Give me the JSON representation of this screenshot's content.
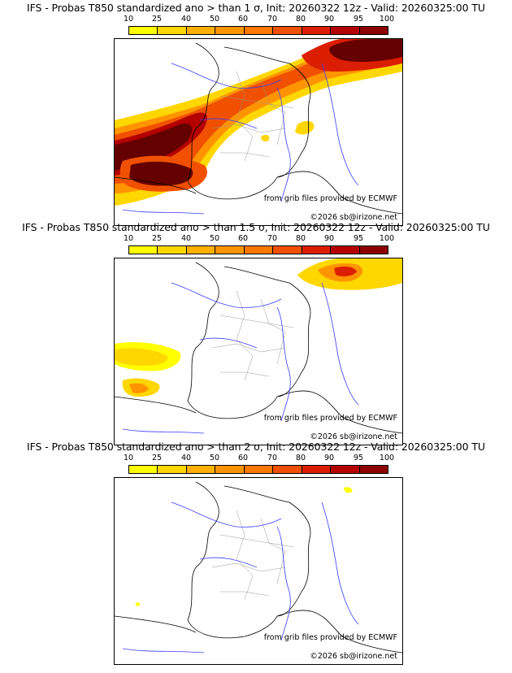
{
  "legend": {
    "labels": [
      "10",
      "25",
      "40",
      "50",
      "60",
      "70",
      "80",
      "90",
      "95",
      "100"
    ],
    "colors": [
      "#ffff00",
      "#ffd700",
      "#ffb000",
      "#ff9400",
      "#ff7800",
      "#f05000",
      "#dc1e00",
      "#b40000",
      "#8c0000",
      "#640000"
    ]
  },
  "panels": [
    {
      "title": "IFS - Probas T850  standardized ano > than 1 σ, Init: 20260322 12z - Valid: 20260325:00 TU",
      "source": "from grib files provided by ECMWF",
      "copyright": "©2026 sb@irizone.net"
    },
    {
      "title": "IFS - Probas T850  standardized ano > than 1.5 σ, Init: 20260322 12z - Valid: 20260325:00 TU",
      "source": "from grib files provided by ECMWF",
      "copyright": "©2026 sb@irizone.net"
    },
    {
      "title": "IFS - Probas T850  standardized ano > than 2 σ, Init: 20260322 12z - Valid: 20260325:00 TU",
      "source": "from grib files provided by ECMWF",
      "copyright": "©2026 sb@irizone.net"
    }
  ]
}
